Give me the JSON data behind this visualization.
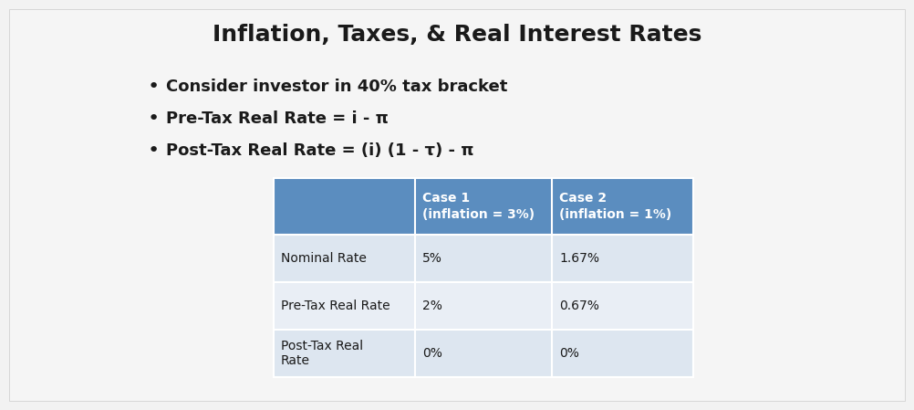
{
  "title": "Inflation, Taxes, & Real Interest Rates",
  "bullets": [
    "Consider investor in 40% tax bracket",
    "Pre-Tax Real Rate = i - π",
    "Post-Tax Real Rate = (i) (1 - τ) - π"
  ],
  "table_header_bg": "#5b8dbf",
  "table_row_bg_1": "#dde6f0",
  "table_row_bg_2": "#e9eef5",
  "table_row_bg_3": "#dde6f0",
  "table_header_text_color": "#ffffff",
  "table_text_color": "#1a1a1a",
  "col1_header": "Case 1\n(inflation = 3%)",
  "col2_header": "Case 2\n(inflation = 1%)",
  "rows": [
    [
      "Nominal Rate",
      "5%",
      "1.67%"
    ],
    [
      "Pre-Tax Real Rate",
      "2%",
      "0.67%"
    ],
    [
      "Post-Tax Real\nRate",
      "0%",
      "0%"
    ]
  ],
  "background_color": "#f0f0f0",
  "title_fontsize": 18,
  "bullet_fontsize": 13,
  "table_header_fontsize": 10,
  "table_fontsize": 10
}
